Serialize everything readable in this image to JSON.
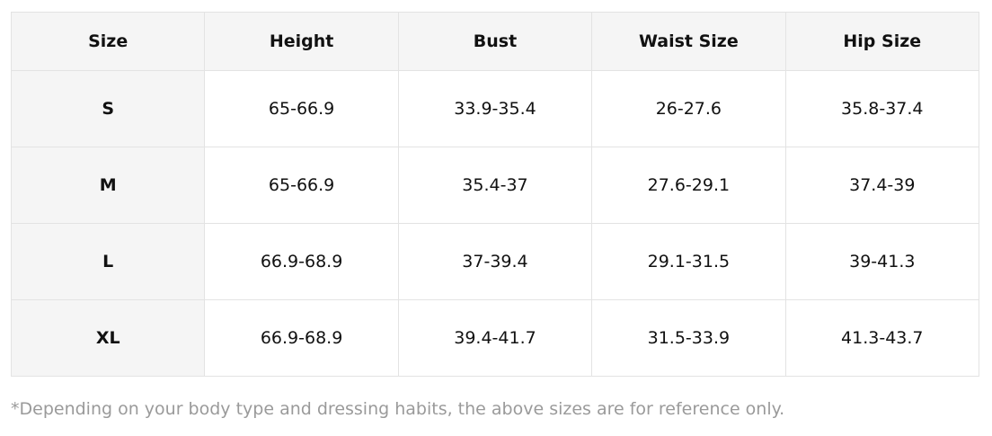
{
  "table": {
    "headers": [
      "Size",
      "Height",
      "Bust",
      "Waist Size",
      "Hip Size"
    ],
    "rows": [
      [
        "S",
        "65-66.9",
        "33.9-35.4",
        "26-27.6",
        "35.8-37.4"
      ],
      [
        "M",
        "65-66.9",
        "35.4-37",
        "27.6-29.1",
        "37.4-39"
      ],
      [
        "L",
        "66.9-68.9",
        "37-39.4",
        "29.1-31.5",
        "39-41.3"
      ],
      [
        "XL",
        "66.9-68.9",
        "39.4-41.7",
        "31.5-33.9",
        "41.3-43.7"
      ]
    ]
  },
  "footnote": "*Depending on your body type and dressing habits, the above sizes are for reference only."
}
